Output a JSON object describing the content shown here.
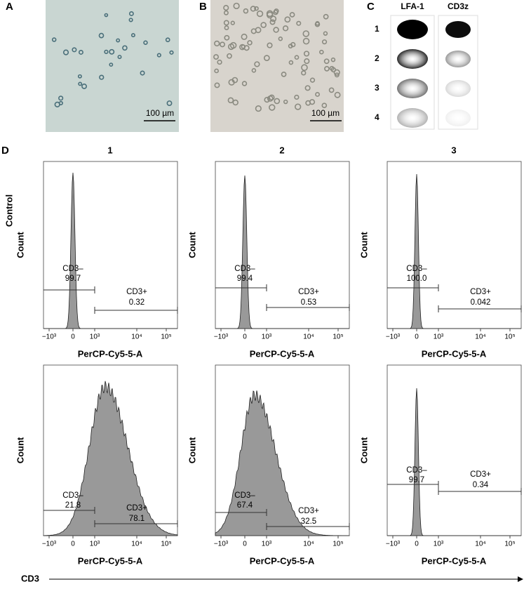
{
  "panels": {
    "A": {
      "label": "A",
      "scale_bar": "100 µm"
    },
    "B": {
      "label": "B",
      "scale_bar": "100 µm"
    },
    "C": {
      "label": "C",
      "columns": [
        "LFA-1",
        "CD3z"
      ],
      "rows": [
        "1",
        "2",
        "3",
        "4"
      ]
    },
    "D": {
      "label": "D",
      "columns": [
        "1",
        "2",
        "3"
      ],
      "row_label": "Control",
      "y_axis_title": "Count",
      "x_axis_title": "PerCP-Cy5-5-A",
      "x_ticks": [
        "−10³",
        "0",
        "10³",
        "10⁴",
        "10⁵"
      ],
      "footer": "CD3",
      "plots": [
        [
          {
            "neg_label": "CD3–",
            "neg_value": "99.7",
            "pos_label": "CD3+",
            "pos_value": "0.32"
          },
          {
            "neg_label": "CD3–",
            "neg_value": "99.4",
            "pos_label": "CD3+",
            "pos_value": "0.53"
          },
          {
            "neg_label": "CD3–",
            "neg_value": "100.0",
            "pos_label": "CD3+",
            "pos_value": "0.042"
          }
        ],
        [
          {
            "neg_label": "CD3–",
            "neg_value": "21.8",
            "pos_label": "CD3+",
            "pos_value": "78.1"
          },
          {
            "neg_label": "CD3–",
            "neg_value": "67.4",
            "pos_label": "CD3+",
            "pos_value": "32.5"
          },
          {
            "neg_label": "CD3–",
            "neg_value": "99.7",
            "pos_label": "CD3+",
            "pos_value": "0.34"
          }
        ]
      ]
    }
  }
}
